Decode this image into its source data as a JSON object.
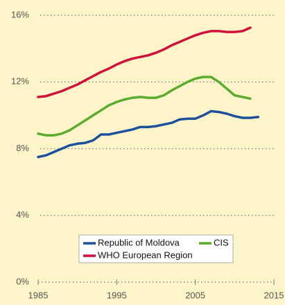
{
  "chart_data": {
    "type": "line",
    "x": [
      1985,
      1986,
      1987,
      1988,
      1989,
      1990,
      1991,
      1992,
      1993,
      1994,
      1995,
      1996,
      1997,
      1998,
      1999,
      2000,
      2001,
      2002,
      2003,
      2004,
      2005,
      2006,
      2007,
      2008,
      2009,
      2010,
      2011,
      2012,
      2013
    ],
    "series": [
      {
        "name": "Republic of Moldova",
        "color": "#1c4f9c",
        "values": [
          7.5,
          7.6,
          7.8,
          8.0,
          8.2,
          8.3,
          8.35,
          8.5,
          8.85,
          8.85,
          8.95,
          9.05,
          9.15,
          9.3,
          9.3,
          9.35,
          9.45,
          9.55,
          9.75,
          9.8,
          9.8,
          10.0,
          10.25,
          10.2,
          10.1,
          9.95,
          9.85,
          9.85,
          9.9
        ]
      },
      {
        "name": "CIS",
        "color": "#5aab2e",
        "values": [
          8.9,
          8.8,
          8.8,
          8.9,
          9.1,
          9.4,
          9.7,
          10.0,
          10.3,
          10.6,
          10.8,
          10.95,
          11.05,
          11.1,
          11.05,
          11.05,
          11.2,
          11.5,
          11.75,
          12.0,
          12.2,
          12.3,
          12.3,
          12.0,
          11.6,
          11.2,
          11.1,
          11.0,
          null
        ]
      },
      {
        "name": "WHO European Region",
        "color": "#d0103a",
        "values": [
          11.1,
          11.15,
          11.3,
          11.45,
          11.65,
          11.85,
          12.1,
          12.35,
          12.6,
          12.8,
          13.05,
          13.25,
          13.4,
          13.5,
          13.6,
          13.75,
          13.95,
          14.2,
          14.4,
          14.6,
          14.8,
          14.95,
          15.05,
          15.05,
          15.0,
          15.0,
          15.05,
          15.25,
          null
        ]
      }
    ],
    "xlim": [
      1985,
      2015
    ],
    "xticks": [
      1985,
      1995,
      2005,
      2015
    ],
    "ylim": [
      0,
      16
    ],
    "yticks": [
      {
        "value": 0,
        "label": "0%"
      },
      {
        "value": 4,
        "label": "4%"
      },
      {
        "value": 8,
        "label": "8%"
      },
      {
        "value": 12,
        "label": "12%"
      },
      {
        "value": 16,
        "label": "16%"
      }
    ],
    "grid": true
  }
}
